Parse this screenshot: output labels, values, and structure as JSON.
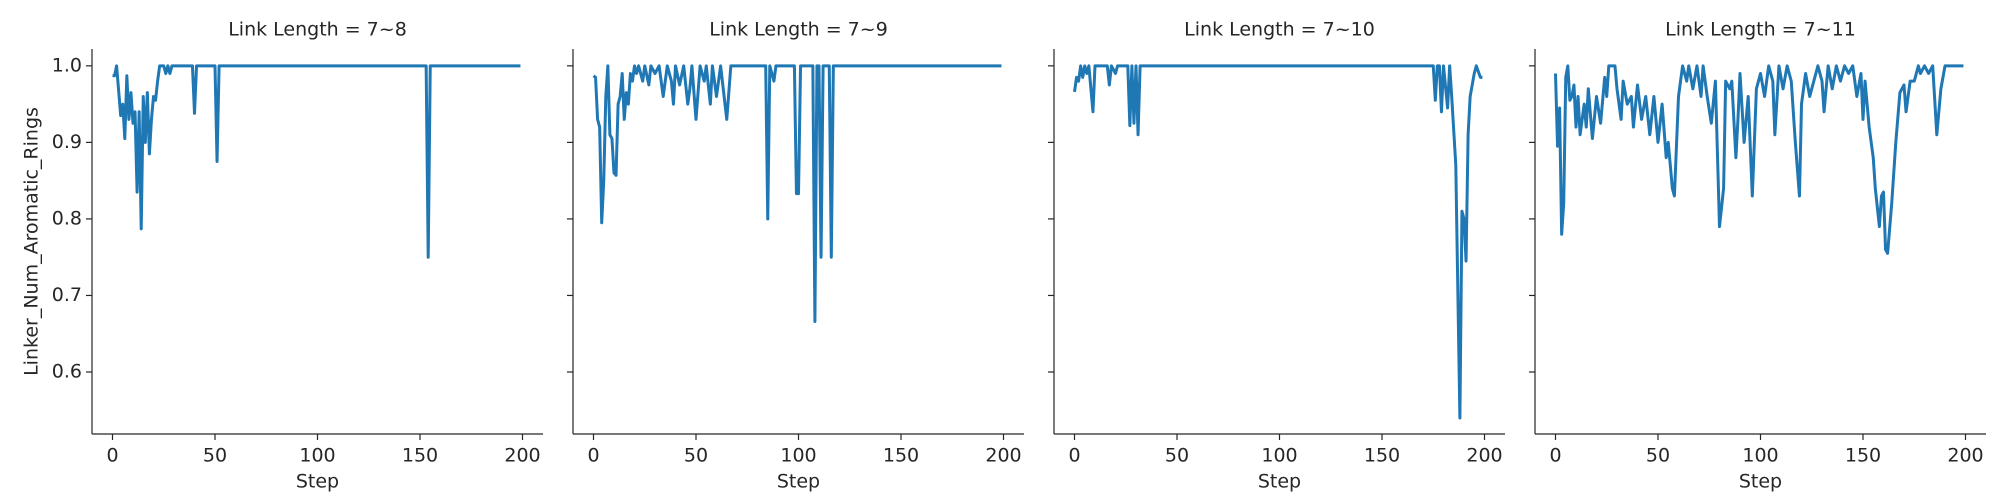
{
  "chart_data": [
    {
      "type": "line",
      "title": "Link Length = 7~8",
      "xlabel": "Step",
      "ylabel": "Linker_Num_Aromatic_Rings",
      "color": "#1f77b4",
      "xlim": [
        -10,
        210
      ],
      "ylim": [
        0.519,
        1.022
      ],
      "xticks": [
        0,
        50,
        100,
        150,
        200
      ],
      "yticks": [
        0.6,
        0.7,
        0.8,
        0.9,
        {
          "value": 1,
          "label": "1.0"
        }
      ],
      "x": [
        0,
        1,
        2,
        4,
        5,
        6,
        7,
        8,
        9,
        10,
        11,
        12,
        13,
        14,
        15,
        16,
        17,
        18,
        19,
        20,
        21,
        22,
        23,
        25,
        26,
        27,
        28,
        29,
        39,
        40,
        41,
        50,
        51,
        52,
        153,
        154,
        155,
        199
      ],
      "values": [
        0.987,
        0.987,
        1.0,
        0.935,
        0.95,
        0.905,
        0.987,
        0.93,
        0.965,
        0.925,
        0.94,
        0.835,
        0.94,
        0.787,
        0.96,
        0.9,
        0.965,
        0.885,
        0.93,
        0.96,
        0.955,
        0.98,
        1.0,
        1.0,
        0.99,
        1.0,
        0.99,
        1.0,
        1.0,
        0.938,
        1.0,
        1.0,
        0.875,
        1.0,
        1.0,
        0.75,
        1.0,
        1.0
      ]
    },
    {
      "type": "line",
      "title": "Link Length = 7~9",
      "xlabel": "Step",
      "color": "#1f77b4",
      "xlim": [
        -10,
        210
      ],
      "ylim": [
        0.519,
        1.022
      ],
      "xticks": [
        0,
        50,
        100,
        150,
        200
      ],
      "x": [
        0,
        1,
        2,
        3,
        4,
        5,
        6,
        7,
        8,
        9,
        10,
        11,
        12,
        13,
        14,
        15,
        16,
        17,
        18,
        19,
        20,
        21,
        22,
        24,
        25,
        27,
        28,
        30,
        32,
        34,
        36,
        38,
        39,
        40,
        42,
        44,
        46,
        47,
        48,
        50,
        52,
        54,
        55,
        57,
        58,
        60,
        62,
        65,
        67,
        84,
        85,
        86,
        88,
        89,
        98,
        99,
        100,
        101,
        107,
        108,
        109,
        110,
        111,
        112,
        115,
        116,
        117,
        199
      ],
      "values": [
        0.987,
        0.985,
        0.93,
        0.92,
        0.795,
        0.85,
        0.96,
        1.0,
        0.91,
        0.905,
        0.86,
        0.857,
        0.95,
        0.96,
        0.99,
        0.93,
        0.965,
        0.95,
        0.99,
        0.98,
        1.0,
        0.99,
        1.0,
        0.98,
        1.0,
        0.975,
        1.0,
        0.99,
        1.0,
        0.96,
        1.0,
        0.98,
        0.95,
        1.0,
        0.975,
        1.0,
        0.95,
        0.97,
        1.0,
        0.93,
        1.0,
        0.98,
        1.0,
        0.95,
        1.0,
        0.96,
        1.0,
        0.93,
        1.0,
        1.0,
        0.8,
        1.0,
        0.98,
        1.0,
        1.0,
        0.833,
        0.833,
        1.0,
        1.0,
        0.666,
        1.0,
        1.0,
        0.75,
        1.0,
        1.0,
        0.75,
        1.0,
        1.0
      ]
    },
    {
      "type": "line",
      "title": "Link Length = 7~10",
      "xlabel": "Step",
      "color": "#1f77b4",
      "xlim": [
        -10,
        210
      ],
      "ylim": [
        0.519,
        1.022
      ],
      "xticks": [
        0,
        50,
        100,
        150,
        200
      ],
      "x": [
        0,
        1,
        2,
        3,
        4,
        5,
        6,
        7,
        8,
        9,
        10,
        16,
        17,
        18,
        20,
        21,
        26,
        27,
        28,
        29,
        30,
        31,
        32,
        175,
        176,
        177,
        178,
        179,
        180,
        182,
        183,
        184,
        186,
        188,
        189,
        190,
        191,
        192,
        193,
        195,
        196,
        198,
        199
      ],
      "values": [
        0.966,
        0.985,
        0.98,
        1.0,
        0.985,
        1.0,
        0.99,
        1.0,
        0.97,
        0.94,
        1.0,
        1.0,
        0.975,
        1.0,
        0.99,
        1.0,
        1.0,
        0.922,
        1.0,
        0.925,
        1.0,
        0.91,
        1.0,
        1.0,
        0.955,
        1.0,
        1.0,
        0.94,
        1.0,
        0.945,
        1.0,
        0.96,
        0.87,
        0.54,
        0.81,
        0.8,
        0.745,
        0.91,
        0.96,
        0.99,
        1.0,
        0.985,
        0.985
      ]
    },
    {
      "type": "line",
      "title": "Link Length = 7~11",
      "xlabel": "Step",
      "color": "#1f77b4",
      "xlim": [
        -10,
        210
      ],
      "ylim": [
        0.519,
        1.022
      ],
      "xticks": [
        0,
        50,
        100,
        150,
        200
      ],
      "x": [
        0,
        1,
        2,
        3,
        4,
        5,
        6,
        7,
        8,
        9,
        10,
        11,
        12,
        14,
        15,
        16,
        18,
        20,
        22,
        24,
        25,
        26,
        29,
        30,
        32,
        33,
        35,
        37,
        38,
        40,
        42,
        44,
        46,
        48,
        50,
        52,
        54,
        55,
        57,
        58,
        60,
        62,
        64,
        65,
        67,
        69,
        71,
        72,
        74,
        76,
        78,
        80,
        82,
        83,
        85,
        86,
        88,
        89,
        90,
        92,
        94,
        96,
        98,
        100,
        102,
        104,
        106,
        107,
        109,
        111,
        113,
        115,
        117,
        119,
        120,
        122,
        124,
        126,
        128,
        130,
        131,
        133,
        135,
        137,
        139,
        141,
        143,
        145,
        147,
        149,
        150,
        151,
        152,
        153,
        155,
        156,
        158,
        159,
        160,
        161,
        162,
        164,
        166,
        168,
        170,
        171,
        173,
        175,
        177,
        178,
        180,
        182,
        184,
        186,
        188,
        190,
        199
      ],
      "values": [
        0.99,
        0.895,
        0.945,
        0.78,
        0.82,
        0.985,
        1.0,
        0.955,
        0.96,
        0.975,
        0.92,
        0.96,
        0.91,
        0.95,
        0.92,
        0.97,
        0.905,
        0.96,
        0.925,
        0.985,
        0.96,
        1.0,
        1.0,
        0.97,
        0.93,
        0.98,
        0.95,
        0.96,
        0.92,
        0.975,
        0.93,
        0.96,
        0.91,
        0.96,
        0.9,
        0.95,
        0.88,
        0.9,
        0.84,
        0.83,
        0.96,
        1.0,
        0.98,
        1.0,
        0.97,
        1.0,
        0.96,
        1.0,
        0.96,
        0.925,
        0.98,
        0.79,
        0.84,
        0.98,
        0.97,
        0.98,
        0.88,
        0.93,
        0.99,
        0.9,
        0.96,
        0.83,
        0.97,
        0.99,
        0.96,
        1.0,
        0.98,
        0.91,
        1.0,
        0.97,
        1.0,
        0.98,
        0.9,
        0.83,
        0.95,
        0.99,
        0.96,
        0.98,
        1.0,
        0.98,
        0.94,
        1.0,
        0.97,
        1.0,
        0.98,
        1.0,
        0.99,
        1.0,
        0.96,
        0.99,
        0.93,
        0.98,
        0.95,
        0.92,
        0.88,
        0.84,
        0.79,
        0.83,
        0.835,
        0.76,
        0.755,
        0.82,
        0.9,
        0.965,
        0.975,
        0.94,
        0.98,
        0.98,
        1.0,
        0.99,
        1.0,
        0.99,
        1.0,
        0.91,
        0.97,
        1.0,
        1.0
      ]
    }
  ]
}
